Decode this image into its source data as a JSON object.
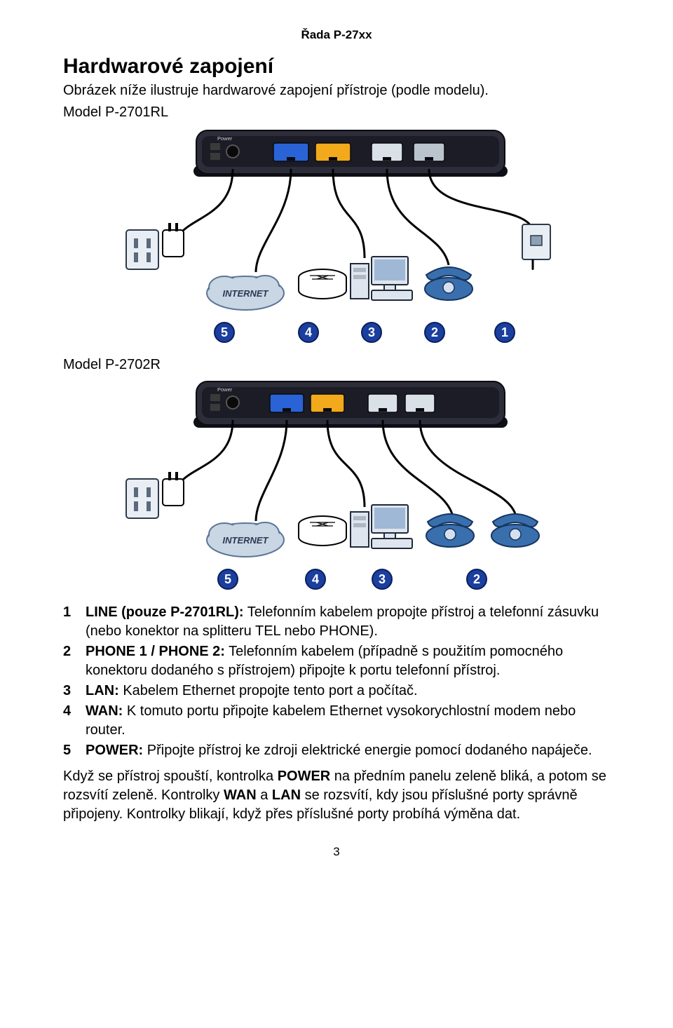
{
  "header": "Řada P-27xx",
  "h1": "Hardwarové zapojení",
  "intro": "Obrázek níže ilustruje hardwarové zapojení přístroje (podle modelu).",
  "model1_label": "Model P-2701RL",
  "model2_label": "Model P-2702R",
  "legend": [
    {
      "n": "1",
      "bold": "LINE (pouze P-2701RL):",
      "text": " Telefonním kabelem propojte přístroj a telefonní zásuvku (nebo konektor na splitteru TEL nebo PHONE)."
    },
    {
      "n": "2",
      "bold": "PHONE 1 / PHONE 2:",
      "text": " Telefonním kabelem (případně s použitím pomocného konektoru dodaného s přístrojem) připojte k portu telefonní přístroj."
    },
    {
      "n": "3",
      "bold": "LAN:",
      "text": " Kabelem Ethernet propojte tento port a počítač."
    },
    {
      "n": "4",
      "bold": "WAN:",
      "text": " K tomuto portu připojte kabelem Ethernet vysokorychlostní modem nebo router."
    },
    {
      "n": "5",
      "bold": "POWER:",
      "text": " Připojte přístroj ke zdroji elektrické energie pomocí dodaného napáječe."
    }
  ],
  "paragraph_parts": {
    "p1a": "Když se přístroj spouští, kontrolka ",
    "p1b": "POWER",
    "p1c": " na předním panelu zeleně bliká, a potom se rozsvítí zeleně. Kontrolky ",
    "p1d": "WAN",
    "p1e": " a ",
    "p1f": "LAN",
    "p1g": " se rozsvítí, kdy jsou příslušné porty správně připojeny. Kontrolky blikají, když přes příslušné porty probíhá výměna dat."
  },
  "page_number": "3",
  "diagram": {
    "internet_label": "INTERNET",
    "badge_bg": "#1b3f9e",
    "badge_fg": "#ffffff",
    "device_body": "#2d2d3a",
    "device_panel": "#1c1c26",
    "port_wan_blue": "#2a63d6",
    "port_lan_yellow": "#f2a91c",
    "port_phone": "#d9e0e6",
    "port_line": "#b9c4cc",
    "cloud_fill": "#c9d6e3",
    "cloud_stroke": "#5b7596",
    "outlet_fill": "#e9eef4",
    "outlet_stroke": "#2d3a4a",
    "phone_fill": "#3a6fae",
    "pc_fill": "#dfe5ee",
    "pc_stroke": "#1f2a3a"
  }
}
